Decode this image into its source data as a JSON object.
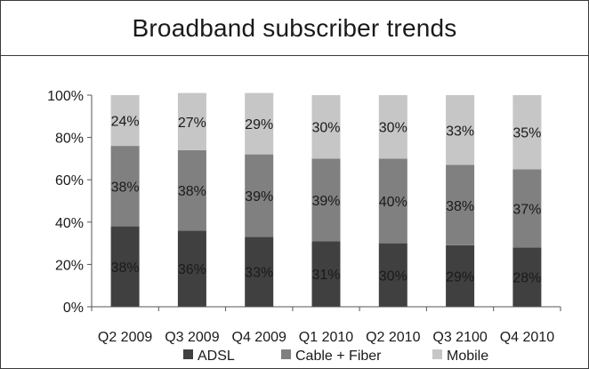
{
  "chart_data": {
    "type": "bar",
    "stacked": true,
    "title": "Broadband subscriber trends",
    "categories": [
      "Q2 2009",
      "Q3 2009",
      "Q4 2009",
      "Q1 2010",
      "Q2 2010",
      "Q3 2100",
      "Q4 2010"
    ],
    "series": [
      {
        "name": "ADSL",
        "color": "#404040",
        "values": [
          38,
          36,
          33,
          31,
          30,
          29,
          28
        ],
        "labels": [
          "38%",
          "36%",
          "33%",
          "31%",
          "30%",
          "29%",
          "28%"
        ]
      },
      {
        "name": "Cable + Fiber",
        "color": "#808080",
        "values": [
          38,
          38,
          39,
          39,
          40,
          38,
          37
        ],
        "labels": [
          "38%",
          "38%",
          "39%",
          "39%",
          "40%",
          "38%",
          "37%"
        ]
      },
      {
        "name": "Mobile",
        "color": "#c6c6c6",
        "values": [
          24,
          27,
          29,
          30,
          30,
          33,
          35
        ],
        "labels": [
          "24%",
          "27%",
          "29%",
          "30%",
          "30%",
          "33%",
          "35%"
        ]
      }
    ],
    "yticks": [
      "0%",
      "20%",
      "40%",
      "60%",
      "80%",
      "100%"
    ],
    "ylim": [
      0,
      100
    ],
    "grid": false,
    "legend": "bottom"
  }
}
